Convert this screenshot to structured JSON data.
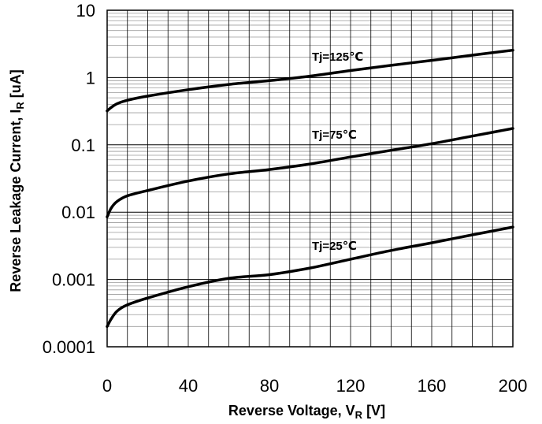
{
  "chart_data": {
    "type": "line",
    "xlabel": {
      "main": "Reverse Voltage, V",
      "sub": "R",
      "unit": " [V]"
    },
    "ylabel": {
      "main": "Reverse Leakage Current, I",
      "sub": "R",
      "unit": " [uA]"
    },
    "xlim": [
      0,
      200
    ],
    "ylim": [
      0.0001,
      10
    ],
    "yscale": "log",
    "grid": true,
    "x_ticks": [
      0,
      40,
      80,
      120,
      160,
      200
    ],
    "x_tick_labels": [
      "0",
      "40",
      "80",
      "120",
      "160",
      "200"
    ],
    "y_ticks": [
      0.0001,
      0.001,
      0.01,
      0.1,
      1,
      10
    ],
    "y_tick_labels": [
      "0.0001",
      "0.001",
      "0.01",
      "0.1",
      "1",
      "10"
    ],
    "series": [
      {
        "name": "Tj=125℃",
        "x": [
          0,
          2,
          5,
          10,
          20,
          40,
          60,
          80,
          100,
          120,
          140,
          160,
          180,
          200
        ],
        "y": [
          0.32,
          0.36,
          0.41,
          0.46,
          0.53,
          0.66,
          0.79,
          0.9,
          1.05,
          1.27,
          1.52,
          1.8,
          2.15,
          2.55
        ]
      },
      {
        "name": "Tj=75℃",
        "x": [
          0,
          2,
          5,
          10,
          20,
          40,
          60,
          80,
          100,
          120,
          140,
          160,
          180,
          200
        ],
        "y": [
          0.0085,
          0.0115,
          0.0145,
          0.0175,
          0.021,
          0.029,
          0.037,
          0.043,
          0.052,
          0.066,
          0.083,
          0.104,
          0.135,
          0.175
        ]
      },
      {
        "name": "Tj=25℃",
        "x": [
          0,
          2,
          5,
          10,
          20,
          40,
          60,
          80,
          100,
          120,
          140,
          160,
          180,
          200
        ],
        "y": [
          0.0002,
          0.00026,
          0.00034,
          0.00042,
          0.00053,
          0.00078,
          0.00104,
          0.00118,
          0.00148,
          0.002,
          0.0027,
          0.0035,
          0.0046,
          0.006
        ]
      }
    ]
  }
}
